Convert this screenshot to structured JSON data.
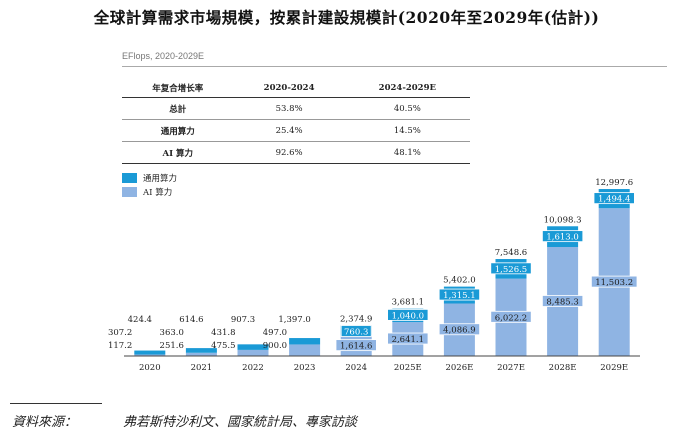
{
  "title": "全球計算需求市場規模，按累計建設規模計(2020年至2029年(估計))",
  "unit_label": "EFlops, 2020-2029E",
  "cagr_table": {
    "headers": [
      "年复合增长率",
      "2020-2024",
      "2024-2029E"
    ],
    "rows": [
      {
        "label": "总計",
        "a": "53.8%",
        "b": "40.5%"
      },
      {
        "label": "通用算力",
        "a": "25.4%",
        "b": "14.5%"
      },
      {
        "label": "AI 算力",
        "a": "92.6%",
        "b": "48.1%"
      }
    ]
  },
  "legend": [
    {
      "label": "通用算力",
      "color": "#1a9ad6"
    },
    {
      "label": "AI 算力",
      "color": "#8fb4e3"
    }
  ],
  "source": {
    "label": "資料來源：",
    "text": "弗若斯特沙利文、國家統計局、專家訪談"
  },
  "chart_data": {
    "type": "bar",
    "stacked": true,
    "categories": [
      "2020",
      "2021",
      "2022",
      "2023",
      "2024",
      "2025E",
      "2026E",
      "2027E",
      "2028E",
      "2029E"
    ],
    "series": [
      {
        "name": "AI 算力",
        "color": "#8fb4e3",
        "values": [
          117.2,
          251.6,
          475.5,
          900.0,
          1614.6,
          2641.1,
          4086.9,
          6022.2,
          8485.3,
          11503.2
        ],
        "labels": [
          "117.2",
          "251.6",
          "475.5",
          "900.0",
          "1,614.6",
          "2,641.1",
          "4,086.9",
          "6,022.2",
          "8,485.3",
          "11,503.2"
        ]
      },
      {
        "name": "通用算力",
        "color": "#1a9ad6",
        "values": [
          307.2,
          363.0,
          431.8,
          497.0,
          760.3,
          1040.0,
          1315.1,
          1526.5,
          1613.0,
          1494.4
        ],
        "labels": [
          "307.2",
          "363.0",
          "431.8",
          "497.0",
          "760.3",
          "1,040.0",
          "1,315.1",
          "1,526.5",
          "1,613.0",
          "1,494.4"
        ]
      }
    ],
    "totals": [
      424.4,
      614.6,
      907.3,
      1397.0,
      2374.9,
      3681.1,
      5402.0,
      7548.6,
      10098.3,
      12997.6
    ],
    "total_labels": [
      "424.4",
      "614.6",
      "907.3",
      "1,397.0",
      "2,374.9",
      "3,681.1",
      "5,402.0",
      "7,548.6",
      "10,098.3",
      "12,997.6"
    ],
    "ylim": [
      0,
      13000
    ],
    "grid": false,
    "legend_position": "top-left"
  }
}
